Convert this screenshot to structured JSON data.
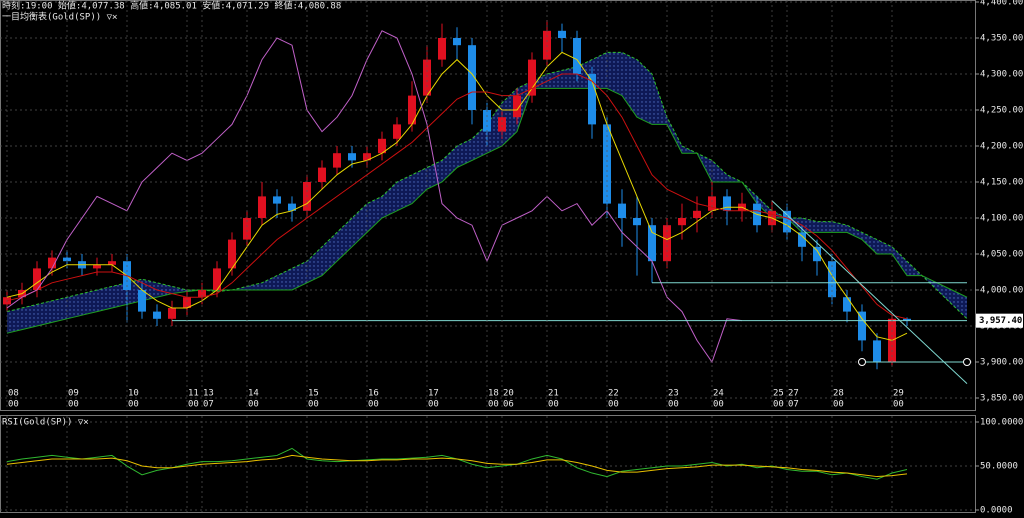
{
  "chart_data": [
    {
      "type": "candlestick",
      "header": "時刻:19:00 始値:4,077.38 高値:4,085.01 安値:4,071.29 終値:4,080.88",
      "title": "一目均衡表(Gold(SP)) ▽✕",
      "categories": [
        "08",
        null,
        null,
        null,
        "09",
        null,
        null,
        null,
        "10",
        null,
        null,
        null,
        "11",
        "13",
        null,
        null,
        "14",
        null,
        null,
        null,
        "15",
        null,
        null,
        null,
        "16",
        null,
        null,
        null,
        "17",
        null,
        null,
        null,
        "18",
        "20",
        null,
        null,
        "21",
        null,
        null,
        null,
        "22",
        null,
        null,
        null,
        "23",
        null,
        null,
        "24",
        null,
        null,
        null,
        "25",
        "27",
        null,
        null,
        "28",
        null,
        null,
        null,
        "29",
        null,
        null,
        null,
        null,
        null
      ],
      "x_sublabels": [
        "00",
        null,
        null,
        null,
        "00",
        null,
        null,
        null,
        "00",
        null,
        null,
        null,
        "00",
        "07",
        null,
        null,
        "00",
        null,
        null,
        null,
        "00",
        null,
        null,
        null,
        "00",
        null,
        null,
        null,
        "00",
        null,
        null,
        null,
        "00",
        "06",
        null,
        null,
        "00",
        null,
        null,
        null,
        "00",
        null,
        null,
        null,
        "00",
        null,
        null,
        "00",
        null,
        null,
        null,
        "00",
        "07",
        null,
        null,
        "00",
        null,
        null,
        null,
        "00",
        null,
        null,
        null,
        null,
        null
      ],
      "open": [
        3980,
        3990,
        4000,
        4030,
        4045,
        4040,
        4030,
        4035,
        4040,
        4000,
        3970,
        3960,
        3975,
        3990,
        4000,
        4030,
        4070,
        4100,
        4130,
        4120,
        4110,
        4150,
        4170,
        4190,
        4180,
        4190,
        4210,
        4230,
        4270,
        4320,
        4350,
        4340,
        4250,
        4220,
        4240,
        4270,
        4320,
        4360,
        4350,
        4300,
        4230,
        4120,
        4100,
        4090,
        4040,
        4090,
        4100,
        4110,
        4130,
        4110,
        4120,
        4090,
        4110,
        4080,
        4060,
        4040,
        3990,
        3970,
        3930,
        3900,
        3960,
        null,
        null,
        null,
        null
      ],
      "high": [
        4000,
        4010,
        4040,
        4055,
        4055,
        4050,
        4045,
        4050,
        4050,
        4010,
        3980,
        3985,
        4000,
        4010,
        4040,
        4080,
        4110,
        4150,
        4140,
        4130,
        4160,
        4180,
        4200,
        4200,
        4200,
        4220,
        4240,
        4290,
        4340,
        4370,
        4365,
        4350,
        4260,
        4250,
        4280,
        4330,
        4375,
        4370,
        4360,
        4310,
        4240,
        4140,
        4130,
        4100,
        4100,
        4120,
        4130,
        4150,
        4140,
        4135,
        4130,
        4125,
        4120,
        4090,
        4070,
        4050,
        4000,
        3980,
        3940,
        3965,
        3962,
        null,
        null,
        null,
        null
      ],
      "low": [
        3970,
        3980,
        3990,
        4020,
        4030,
        4020,
        4020,
        4025,
        3955,
        3960,
        3950,
        3950,
        3965,
        3980,
        3990,
        4020,
        4060,
        4090,
        4100,
        4095,
        4100,
        4140,
        4160,
        4170,
        4170,
        4180,
        4200,
        4220,
        4260,
        4310,
        4320,
        4230,
        4200,
        4210,
        4230,
        4260,
        4310,
        4330,
        4290,
        4210,
        4100,
        4060,
        4020,
        4010,
        4030,
        4070,
        4080,
        4100,
        4090,
        4095,
        4080,
        4080,
        4070,
        4040,
        4020,
        3980,
        3955,
        3915,
        3890,
        3895,
        3950,
        null,
        null,
        null,
        null
      ],
      "close": [
        3990,
        4000,
        4030,
        4045,
        4040,
        4030,
        4035,
        4040,
        4000,
        3970,
        3960,
        3975,
        3990,
        4000,
        4030,
        4070,
        4100,
        4130,
        4120,
        4110,
        4150,
        4170,
        4190,
        4180,
        4190,
        4210,
        4230,
        4270,
        4320,
        4350,
        4340,
        4250,
        4220,
        4240,
        4270,
        4320,
        4360,
        4350,
        4300,
        4230,
        4120,
        4100,
        4090,
        4040,
        4090,
        4100,
        4110,
        4130,
        4110,
        4120,
        4090,
        4110,
        4080,
        4060,
        4040,
        3990,
        3970,
        3930,
        3900,
        3960,
        3957.4,
        null,
        null,
        null,
        null
      ],
      "up_color": "#e01020",
      "down_color": "#1e8ce8",
      "series": [
        {
          "color": "#e8d800",
          "values": [
            3990,
            3995,
            4010,
            4025,
            4035,
            4035,
            4035,
            4035,
            4020,
            4000,
            3985,
            3975,
            3975,
            3985,
            4000,
            4030,
            4060,
            4090,
            4105,
            4110,
            4120,
            4140,
            4160,
            4175,
            4180,
            4190,
            4205,
            4230,
            4270,
            4300,
            4320,
            4300,
            4270,
            4250,
            4250,
            4280,
            4310,
            4330,
            4320,
            4290,
            4230,
            4180,
            4130,
            4080,
            4070,
            4080,
            4095,
            4110,
            4115,
            4115,
            4105,
            4100,
            4090,
            4075,
            4055,
            4020,
            3990,
            3960,
            3935,
            3930,
            3940,
            null,
            null,
            null,
            null
          ]
        },
        {
          "color": "#cc1010",
          "values": [
            3985,
            3990,
            4000,
            4010,
            4015,
            4020,
            4025,
            4025,
            4020,
            4010,
            4000,
            3995,
            3990,
            3990,
            3995,
            4010,
            4030,
            4050,
            4070,
            4085,
            4100,
            4115,
            4130,
            4145,
            4160,
            4175,
            4190,
            4205,
            4225,
            4245,
            4265,
            4275,
            4275,
            4270,
            4270,
            4280,
            4290,
            4300,
            4300,
            4290,
            4270,
            4240,
            4200,
            4160,
            4140,
            4130,
            4120,
            4115,
            4110,
            4110,
            4110,
            4105,
            4100,
            4090,
            4075,
            4055,
            4030,
            4005,
            3980,
            3965,
            3960,
            null,
            null,
            null,
            null
          ]
        },
        {
          "color": "#c060c8",
          "values": [
            3975,
            3990,
            4000,
            4030,
            4070,
            4100,
            4130,
            4120,
            4110,
            4150,
            4170,
            4190,
            4180,
            4190,
            4210,
            4230,
            4270,
            4320,
            4350,
            4340,
            4250,
            4220,
            4240,
            4270,
            4320,
            4360,
            4350,
            4300,
            4230,
            4120,
            4100,
            4090,
            4040,
            4090,
            4100,
            4110,
            4130,
            4110,
            4120,
            4090,
            4110,
            4080,
            4060,
            4040,
            3990,
            3970,
            3930,
            3900,
            3960,
            3957.4,
            null,
            null,
            null,
            null,
            null,
            null,
            null,
            null,
            null,
            null,
            null,
            null,
            null,
            null,
            null
          ]
        },
        {
          "color": "#30c030",
          "dashed": true,
          "values": [
            3970,
            3975,
            3980,
            3985,
            3990,
            3995,
            4000,
            4005,
            4010,
            4015,
            4010,
            4005,
            4000,
            4000,
            3998,
            4000,
            4005,
            4010,
            4020,
            4030,
            4040,
            4060,
            4080,
            4100,
            4120,
            4130,
            4150,
            4160,
            4170,
            4180,
            4200,
            4210,
            4230,
            4260,
            4280,
            4290,
            4300,
            4305,
            4310,
            4320,
            4330,
            4330,
            4320,
            4300,
            4240,
            4200,
            4190,
            4180,
            4160,
            4150,
            4130,
            4110,
            4100,
            4100,
            4095,
            4095,
            4090,
            4080,
            4070,
            4060,
            4040,
            4020,
            4000,
            3980,
            3960
          ]
        },
        {
          "color": "#20a020",
          "values": [
            3940,
            3945,
            3950,
            3955,
            3960,
            3965,
            3970,
            3975,
            3980,
            3985,
            3990,
            3995,
            3998,
            4000,
            4000,
            4000,
            4000,
            4000,
            4000,
            4000,
            4010,
            4020,
            4040,
            4060,
            4080,
            4100,
            4110,
            4120,
            4140,
            4150,
            4170,
            4180,
            4190,
            4200,
            4220,
            4280,
            4280,
            4280,
            4280,
            4280,
            4280,
            4270,
            4240,
            4230,
            4230,
            4190,
            4190,
            4150,
            4150,
            4150,
            4120,
            4100,
            4100,
            4080,
            4080,
            4080,
            4080,
            4070,
            4050,
            4050,
            4020,
            4020,
            4010,
            4000,
            3990
          ]
        }
      ],
      "cloud_color": "#101c60",
      "ylim": [
        3850,
        4400
      ],
      "yticks": [
        {
          "value": 4400,
          "label": "4,400.00"
        },
        {
          "value": 4350,
          "label": "4,350.00"
        },
        {
          "value": 4300,
          "label": "4,300.00"
        },
        {
          "value": 4250,
          "label": "4,250.00"
        },
        {
          "value": 4200,
          "label": "4,200.00"
        },
        {
          "value": 4150,
          "label": "4,150.00"
        },
        {
          "value": 4100,
          "label": "4,100.00"
        },
        {
          "value": 4050,
          "label": "4,050.00"
        },
        {
          "value": 4000,
          "label": "4,000.00"
        },
        {
          "value": 3950,
          "label": "3,950.00"
        },
        {
          "value": 3900,
          "label": "3,900.00"
        },
        {
          "value": 3850,
          "label": "3,850.00"
        }
      ],
      "last_price": {
        "value": 3957.4,
        "label": "3,957.40"
      },
      "drawings": [
        {
          "type": "hline",
          "value": 4010,
          "start": 43,
          "end": 64
        },
        {
          "type": "hline",
          "value": 3957.4,
          "start": 11,
          "end": 64
        },
        {
          "type": "hline",
          "value": 3900,
          "start": 57,
          "end": 64,
          "markers": true
        },
        {
          "type": "trend",
          "start": 51,
          "end": 64,
          "from": 4124,
          "to": 3870
        }
      ],
      "grid": true
    },
    {
      "type": "line",
      "title": "RSI(Gold(SP)) ▽✕",
      "series": [
        {
          "color": "#30b830",
          "values": [
            55,
            58,
            60,
            62,
            60,
            58,
            60,
            62,
            50,
            40,
            45,
            48,
            52,
            55,
            55,
            56,
            58,
            60,
            62,
            70,
            58,
            56,
            55,
            56,
            57,
            58,
            58,
            59,
            60,
            62,
            58,
            52,
            48,
            50,
            52,
            58,
            62,
            58,
            48,
            42,
            38,
            44,
            46,
            48,
            50,
            50,
            52,
            54,
            50,
            52,
            48,
            50,
            46,
            44,
            44,
            40,
            42,
            38,
            35,
            42,
            46,
            null,
            null,
            null,
            null
          ]
        },
        {
          "color": "#e8c000",
          "values": [
            52,
            54,
            56,
            58,
            58,
            58,
            58,
            59,
            56,
            50,
            48,
            48,
            50,
            52,
            53,
            54,
            55,
            57,
            58,
            62,
            60,
            58,
            57,
            56,
            56,
            57,
            57,
            58,
            58,
            59,
            58,
            56,
            53,
            52,
            52,
            54,
            57,
            57,
            54,
            50,
            45,
            43,
            43,
            45,
            47,
            48,
            49,
            51,
            51,
            51,
            50,
            49,
            48,
            46,
            45,
            43,
            42,
            40,
            38,
            39,
            41,
            null,
            null,
            null,
            null
          ]
        }
      ],
      "ylim": [
        0,
        100
      ],
      "yticks": [
        {
          "value": 100,
          "label": "100.0000"
        },
        {
          "value": 50,
          "label": "50.0000"
        },
        {
          "value": 0,
          "label": "0.0000"
        }
      ],
      "grid": true
    }
  ]
}
